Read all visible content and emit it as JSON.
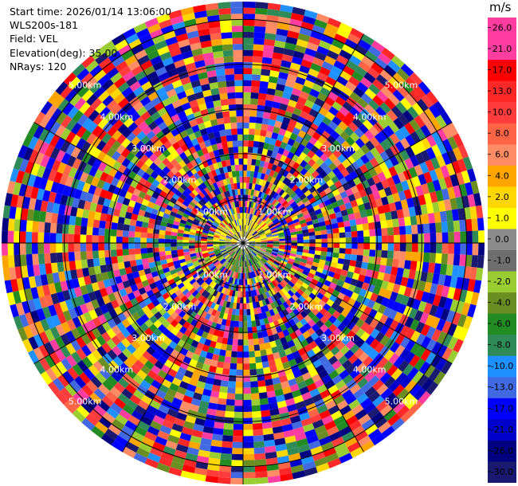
{
  "info": {
    "start_time": "Start time: 2026/01/14 13:06:00",
    "instrument": "WLS200s-181",
    "field": "Field: VEL",
    "elevation": "Elevation(deg): 35.00",
    "nrays": "NRays: 120"
  },
  "range_rings": {
    "labels": [
      "1.00km",
      "2.00km",
      "3.00km",
      "4.00km",
      "5.00km"
    ],
    "max_range_km": 5.4
  },
  "colorbar": {
    "unit": "m/s",
    "ticks": [
      "26.0",
      "21.0",
      "17.0",
      "13.0",
      "10.0",
      "8.0",
      "6.0",
      "4.0",
      "2.0",
      "1.0",
      "0.0",
      "-1.0",
      "-2.0",
      "-4.0",
      "-6.0",
      "-8.0",
      "-10.0",
      "-13.0",
      "-17.0",
      "-21.0",
      "-26.0",
      "-30.0"
    ],
    "colors": [
      "#ff3ca0",
      "#ff3ca0",
      "#ff0000",
      "#ff2828",
      "#ff3c3c",
      "#ff6446",
      "#ff8c64",
      "#ffa500",
      "#ffd700",
      "#ffff00",
      "#8c8c8c",
      "#6e6e6e",
      "#9acd32",
      "#6b8e23",
      "#228b22",
      "#2e8b57",
      "#1e90ff",
      "#4169e1",
      "#0000ff",
      "#0000cd",
      "#000080",
      "#191970"
    ]
  }
}
